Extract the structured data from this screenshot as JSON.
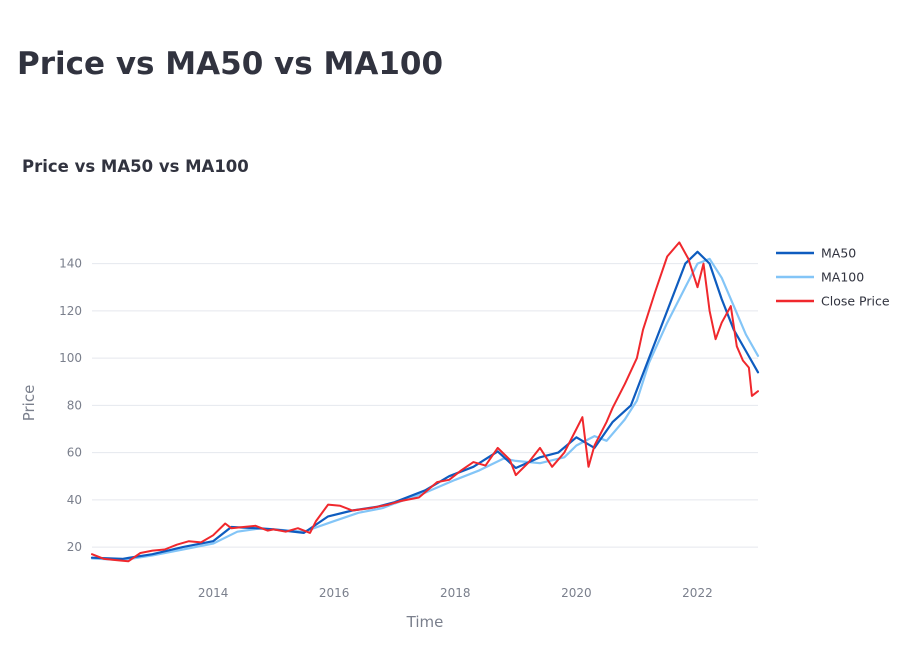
{
  "page": {
    "title": "Price vs MA50 vs MA100"
  },
  "chart_data": {
    "type": "line",
    "title": "Price vs MA50 vs MA100",
    "xlabel": "Time",
    "ylabel": "Price",
    "xlim": [
      2012.0,
      2023.0
    ],
    "ylim": [
      12,
      150
    ],
    "x_ticks": [
      2014,
      2016,
      2018,
      2020,
      2022
    ],
    "x_tick_labels": [
      "2014",
      "2016",
      "2018",
      "2020",
      "2022"
    ],
    "y_ticks": [
      20,
      40,
      60,
      80,
      100,
      120,
      140
    ],
    "y_tick_labels": [
      "20",
      "40",
      "60",
      "80",
      "100",
      "120",
      "140"
    ],
    "grid": "horizontal",
    "legend_position": "top-right",
    "colors": {
      "ma50": "#0e5cbf",
      "ma100": "#83c5f7",
      "close": "#f0282d",
      "grid": "#e5e8ee"
    },
    "series": [
      {
        "name": "MA50",
        "color": "#0e5cbf",
        "x": [
          2012.0,
          2012.5,
          2013.0,
          2013.5,
          2014.0,
          2014.3,
          2014.7,
          2015.0,
          2015.5,
          2015.9,
          2016.3,
          2016.7,
          2017.0,
          2017.5,
          2017.9,
          2018.3,
          2018.7,
          2019.0,
          2019.4,
          2019.7,
          2020.0,
          2020.3,
          2020.6,
          2020.9,
          2021.2,
          2021.5,
          2021.8,
          2022.0,
          2022.2,
          2022.4,
          2022.6,
          2022.8,
          2023.0
        ],
        "y": [
          15.5,
          15.0,
          17.0,
          20.0,
          22.5,
          28.5,
          28.0,
          27.5,
          26.0,
          33.0,
          35.5,
          37.0,
          39.0,
          44.0,
          50.0,
          54.0,
          60.5,
          53.5,
          58.0,
          60.0,
          66.5,
          62.0,
          73.0,
          80.0,
          100.0,
          120.0,
          140.0,
          145.0,
          140.0,
          125.0,
          112.0,
          103.0,
          94.0
        ]
      },
      {
        "name": "MA100",
        "color": "#83c5f7",
        "x": [
          2012.0,
          2012.5,
          2013.0,
          2013.5,
          2014.0,
          2014.4,
          2014.8,
          2015.0,
          2015.5,
          2016.0,
          2016.4,
          2016.8,
          2017.0,
          2017.5,
          2018.0,
          2018.4,
          2018.8,
          2019.0,
          2019.4,
          2019.8,
          2020.0,
          2020.3,
          2020.5,
          2020.8,
          2021.0,
          2021.2,
          2021.5,
          2021.8,
          2022.0,
          2022.2,
          2022.4,
          2022.6,
          2022.8,
          2023.0
        ],
        "y": [
          15.2,
          14.5,
          16.5,
          19.0,
          21.5,
          26.5,
          28.0,
          27.5,
          26.5,
          31.0,
          34.5,
          36.5,
          38.5,
          43.0,
          48.5,
          52.5,
          57.5,
          56.5,
          55.5,
          58.0,
          63.0,
          67.0,
          65.0,
          74.0,
          82.0,
          98.0,
          115.0,
          130.0,
          140.0,
          142.0,
          134.0,
          122.0,
          110.0,
          101.0
        ]
      },
      {
        "name": "Close Price",
        "color": "#f0282d",
        "x": [
          2012.0,
          2012.2,
          2012.4,
          2012.6,
          2012.8,
          2013.0,
          2013.2,
          2013.4,
          2013.6,
          2013.8,
          2014.0,
          2014.2,
          2014.3,
          2014.5,
          2014.7,
          2014.9,
          2015.0,
          2015.2,
          2015.4,
          2015.6,
          2015.7,
          2015.9,
          2016.1,
          2016.3,
          2016.6,
          2016.9,
          2017.1,
          2017.4,
          2017.7,
          2017.9,
          2018.1,
          2018.3,
          2018.5,
          2018.7,
          2018.9,
          2019.0,
          2019.2,
          2019.4,
          2019.6,
          2019.8,
          2020.0,
          2020.1,
          2020.2,
          2020.3,
          2020.5,
          2020.6,
          2020.8,
          2021.0,
          2021.1,
          2021.3,
          2021.5,
          2021.7,
          2021.85,
          2022.0,
          2022.1,
          2022.2,
          2022.3,
          2022.4,
          2022.55,
          2022.65,
          2022.75,
          2022.85,
          2022.9,
          2023.0
        ],
        "y": [
          17.0,
          15.0,
          14.5,
          14.0,
          17.5,
          18.5,
          19.0,
          21.0,
          22.5,
          22.0,
          25.0,
          30.0,
          28.0,
          28.5,
          29.0,
          27.0,
          27.5,
          26.5,
          28.0,
          26.0,
          31.0,
          38.0,
          37.5,
          35.5,
          36.5,
          38.0,
          39.5,
          41.0,
          47.5,
          48.5,
          52.5,
          56.0,
          54.5,
          62.0,
          57.0,
          50.5,
          55.5,
          62.0,
          54.0,
          60.0,
          70.0,
          75.0,
          54.0,
          63.0,
          73.0,
          79.0,
          89.0,
          100.0,
          112.0,
          128.0,
          143.0,
          149.0,
          142.0,
          130.0,
          140.0,
          120.0,
          108.0,
          115.0,
          122.0,
          105.0,
          99.0,
          96.0,
          84.0,
          86.0
        ]
      }
    ]
  }
}
